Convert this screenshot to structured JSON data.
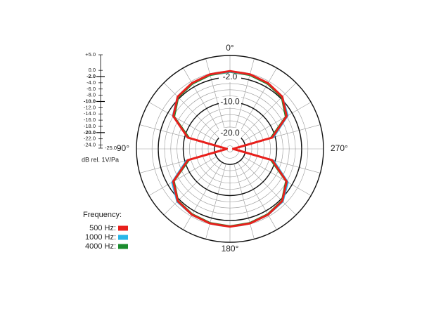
{
  "chart_data": {
    "type": "polar",
    "rlim": [
      -25,
      5
    ],
    "rticks": [
      {
        "value": 5,
        "label": "+5.0"
      },
      {
        "value": 0,
        "label": "0.0"
      },
      {
        "value": -2,
        "label": "-2.0",
        "bold": true
      },
      {
        "value": -4,
        "label": "-4.0"
      },
      {
        "value": -6,
        "label": "-6.0"
      },
      {
        "value": -8,
        "label": "-8.0"
      },
      {
        "value": -10,
        "label": "-10.0",
        "bold": true
      },
      {
        "value": -12,
        "label": "-12.0"
      },
      {
        "value": -14,
        "label": "-14.0"
      },
      {
        "value": -16,
        "label": "-16.0"
      },
      {
        "value": -18,
        "label": "-18.0"
      },
      {
        "value": -20,
        "label": "-20.0",
        "bold": true
      },
      {
        "value": -22,
        "label": "-22.0"
      },
      {
        "value": -24,
        "label": "-24.0"
      },
      {
        "value": -25,
        "label": "-25.0"
      }
    ],
    "ring_labels": [
      {
        "value": -2,
        "label": "-2.0"
      },
      {
        "value": -10,
        "label": "-10.0"
      },
      {
        "value": -20,
        "label": "-20.0"
      }
    ],
    "angle_ticks": [
      {
        "value": 0,
        "label": "0°"
      },
      {
        "value": 90,
        "label": "90°"
      },
      {
        "value": 180,
        "label": "180°"
      },
      {
        "value": 270,
        "label": "270°"
      }
    ],
    "unit_label": "dB rel. 1V/Pa",
    "legend_title": "Frequency:",
    "angles": [
      0,
      15,
      30,
      45,
      60,
      75,
      90,
      105,
      120,
      135,
      150,
      165,
      180,
      195,
      210,
      225,
      240,
      255,
      270,
      285,
      300,
      315,
      330,
      345
    ],
    "series": [
      {
        "name": "500 Hz:",
        "color": "#e8201c",
        "values": [
          0,
          -0.2,
          -0.6,
          -1.3,
          -4,
          -11,
          -24,
          -11,
          -4,
          -1.3,
          -0.6,
          -0.2,
          0,
          -0.2,
          -0.6,
          -1.3,
          -4,
          -11,
          -24,
          -11,
          -4,
          -1.3,
          -0.6,
          -0.2
        ]
      },
      {
        "name": "1000 Hz:",
        "color": "#29b6e8",
        "values": [
          -0.2,
          -0.3,
          -0.6,
          -1.2,
          -3.8,
          -11,
          -24,
          -10.5,
          -3.5,
          -1,
          -0.5,
          -0.2,
          0,
          -0.2,
          -0.5,
          -1,
          -3.5,
          -10.5,
          -24,
          -10.5,
          -3.6,
          -1.2,
          -0.6,
          -0.3
        ]
      },
      {
        "name": "4000 Hz:",
        "color": "#1a8c2e",
        "values": [
          -0.3,
          -0.5,
          -0.9,
          -1.6,
          -4.4,
          -11.5,
          -24,
          -11.5,
          -4.3,
          -1.5,
          -0.8,
          -0.4,
          -0.2,
          -0.4,
          -0.8,
          -1.5,
          -4.3,
          -11.5,
          -24,
          -11.5,
          -4.4,
          -1.6,
          -0.9,
          -0.5
        ]
      }
    ]
  }
}
